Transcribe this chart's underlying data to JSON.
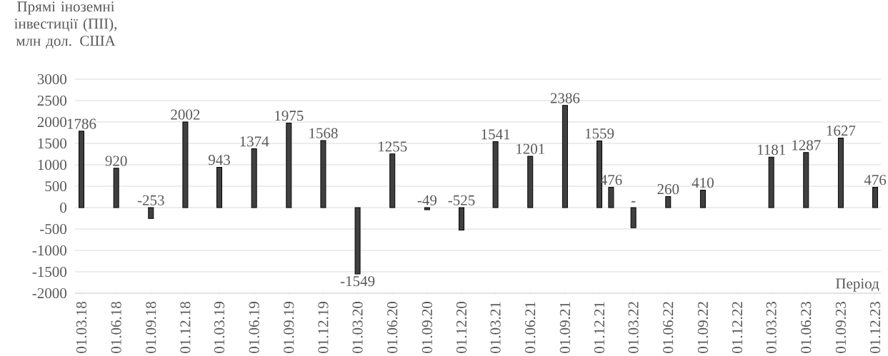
{
  "chart_data": {
    "type": "bar",
    "ylabel": "Прямі іноземні інвестиції (ПІІ), млн дол. США",
    "xlabel": "Період",
    "x": [
      "2018-03-01",
      "2018-06-01",
      "2018-09-01",
      "2018-12-01",
      "2019-03-01",
      "2019-06-01",
      "2019-09-01",
      "2019-12-01",
      "2020-03-01",
      "2020-06-01",
      "2020-09-01",
      "2020-12-01",
      "2021-03-01",
      "2021-06-01",
      "2021-09-01",
      "2021-12-01",
      "2022-01-01",
      "2022-03-01",
      "2022-06-01",
      "2022-09-01",
      "2023-03-01",
      "2023-06-01",
      "2023-09-01",
      "2023-12-01"
    ],
    "values": [
      1786,
      920,
      -253,
      2002,
      943,
      1374,
      1975,
      1568,
      -1549,
      1255,
      -49,
      -525,
      1541,
      1201,
      2386,
      1559,
      476,
      -470,
      260,
      410,
      1181,
      1287,
      1627,
      476
    ],
    "value_labels": [
      "1786",
      "920",
      "-253",
      "2002",
      "943",
      "1374",
      "1975",
      "1568",
      "-1549",
      "1255",
      "-49",
      "-525",
      "1541",
      "1201",
      "2386",
      "1559",
      "476",
      "-",
      "260",
      "410",
      "1181",
      "1287",
      "1627",
      "476"
    ],
    "color": "#404040",
    "xlim": [
      "2018-02-12",
      "2023-12-16"
    ],
    "xticks": [
      {
        "value": "2018-03-01",
        "label": "01.03.18"
      },
      {
        "value": "2018-06-01",
        "label": "01.06.18"
      },
      {
        "value": "2018-09-01",
        "label": "01.09.18"
      },
      {
        "value": "2018-12-01",
        "label": "01.12.18"
      },
      {
        "value": "2019-03-01",
        "label": "01.03.19"
      },
      {
        "value": "2019-06-01",
        "label": "01.06.19"
      },
      {
        "value": "2019-09-01",
        "label": "01.09.19"
      },
      {
        "value": "2019-12-01",
        "label": "01.12.19"
      },
      {
        "value": "2020-03-01",
        "label": "01.03.20"
      },
      {
        "value": "2020-06-01",
        "label": "01.06.20"
      },
      {
        "value": "2020-09-01",
        "label": "01.09.20"
      },
      {
        "value": "2020-12-01",
        "label": "01.12.20"
      },
      {
        "value": "2021-03-01",
        "label": "01.03.21"
      },
      {
        "value": "2021-06-01",
        "label": "01.06.21"
      },
      {
        "value": "2021-09-01",
        "label": "01.09.21"
      },
      {
        "value": "2021-12-01",
        "label": "01.12.21"
      },
      {
        "value": "2022-03-01",
        "label": "01.03.22"
      },
      {
        "value": "2022-06-01",
        "label": "01.06.22"
      },
      {
        "value": "2022-09-01",
        "label": "01.09.22"
      },
      {
        "value": "2022-12-01",
        "label": "01.12.22"
      },
      {
        "value": "2023-03-01",
        "label": "01.03.23"
      },
      {
        "value": "2023-06-01",
        "label": "01.06.23"
      },
      {
        "value": "2023-09-01",
        "label": "01.09.23"
      },
      {
        "value": "2023-12-01",
        "label": "01.12.23"
      }
    ],
    "ylim": [
      -2000,
      3000
    ],
    "yticks": [
      -2000,
      -1500,
      -1000,
      -500,
      0,
      500,
      1000,
      1500,
      2000,
      2500,
      3000
    ],
    "grid": "y"
  }
}
